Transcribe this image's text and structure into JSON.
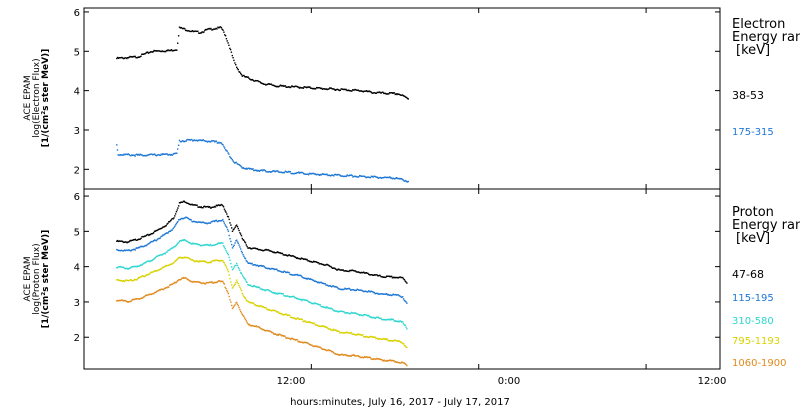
{
  "chart_data": [
    {
      "type": "scatter",
      "panel": "electron",
      "ylabel": [
        "ACE EPAM",
        "log(Electron Flux)",
        "[1/(cm²s ster MeV)]"
      ],
      "ylim": [
        1.5,
        6.1
      ],
      "yticks": [
        2,
        3,
        4,
        5,
        6
      ],
      "legend_title": [
        "Electron",
        "Energy ran",
        "[keV]"
      ],
      "series": [
        {
          "name": "38-53",
          "color": "#000000",
          "points": [
            [
              0,
              4.82
            ],
            [
              1.5,
              4.86
            ],
            [
              2.5,
              5.0
            ],
            [
              3.8,
              5.02
            ],
            [
              4.3,
              5.05
            ],
            [
              4.5,
              5.6
            ],
            [
              5.0,
              5.55
            ],
            [
              5.5,
              5.5
            ],
            [
              6.0,
              5.48
            ],
            [
              6.5,
              5.55
            ],
            [
              7.0,
              5.58
            ],
            [
              7.5,
              5.6
            ],
            [
              7.8,
              5.4
            ],
            [
              8.1,
              5.1
            ],
            [
              8.4,
              4.75
            ],
            [
              8.6,
              4.6
            ],
            [
              9.0,
              4.38
            ],
            [
              9.6,
              4.3
            ],
            [
              10.5,
              4.18
            ],
            [
              11.5,
              4.12
            ],
            [
              12.5,
              4.1
            ],
            [
              13.5,
              4.08
            ],
            [
              14.5,
              4.06
            ],
            [
              15.5,
              4.04
            ],
            [
              16.5,
              4.02
            ],
            [
              17.5,
              4.0
            ],
            [
              18.5,
              3.95
            ],
            [
              19.5,
              3.93
            ],
            [
              20.2,
              3.92
            ],
            [
              20.9,
              3.8
            ]
          ]
        },
        {
          "name": "175-315",
          "color": "#1f77d4",
          "points": [
            [
              0,
              2.62
            ],
            [
              0.1,
              2.38
            ],
            [
              1.5,
              2.36
            ],
            [
              3.8,
              2.38
            ],
            [
              4.3,
              2.4
            ],
            [
              4.5,
              2.72
            ],
            [
              5.5,
              2.75
            ],
            [
              6.5,
              2.72
            ],
            [
              7.5,
              2.68
            ],
            [
              7.8,
              2.5
            ],
            [
              8.1,
              2.35
            ],
            [
              8.4,
              2.2
            ],
            [
              9.0,
              2.05
            ],
            [
              10.0,
              1.98
            ],
            [
              11.0,
              1.95
            ],
            [
              12.5,
              1.92
            ],
            [
              14.0,
              1.88
            ],
            [
              15.5,
              1.86
            ],
            [
              17.0,
              1.83
            ],
            [
              18.5,
              1.8
            ],
            [
              20.0,
              1.78
            ],
            [
              20.9,
              1.7
            ]
          ]
        }
      ]
    },
    {
      "type": "scatter",
      "panel": "proton",
      "ylabel": [
        "ACE EPAM",
        "log(Proton Flux)",
        "[1/(cm²s ster MeV)]"
      ],
      "ylim": [
        1.1,
        6.2
      ],
      "yticks": [
        2,
        3,
        4,
        5,
        6
      ],
      "legend_title": [
        "Proton",
        "Energy ran",
        "[keV]"
      ],
      "series": [
        {
          "name": "47-68",
          "color": "#000000",
          "points": [
            [
              0,
              4.72
            ],
            [
              0.8,
              4.7
            ],
            [
              1.5,
              4.78
            ],
            [
              2.3,
              4.9
            ],
            [
              3.0,
              5.05
            ],
            [
              3.6,
              5.2
            ],
            [
              4.1,
              5.4
            ],
            [
              4.5,
              5.8
            ],
            [
              4.9,
              5.85
            ],
            [
              5.4,
              5.75
            ],
            [
              6.0,
              5.7
            ],
            [
              6.6,
              5.68
            ],
            [
              7.2,
              5.72
            ],
            [
              7.6,
              5.75
            ],
            [
              8.0,
              5.4
            ],
            [
              8.3,
              5.0
            ],
            [
              8.6,
              5.2
            ],
            [
              9.0,
              4.8
            ],
            [
              9.4,
              4.55
            ],
            [
              10.0,
              4.5
            ],
            [
              11.0,
              4.45
            ],
            [
              12.0,
              4.35
            ],
            [
              13.0,
              4.25
            ],
            [
              14.0,
              4.15
            ],
            [
              15.0,
              4.05
            ],
            [
              16.0,
              3.9
            ],
            [
              17.0,
              3.88
            ],
            [
              18.0,
              3.8
            ],
            [
              19.0,
              3.72
            ],
            [
              20.0,
              3.7
            ],
            [
              20.5,
              3.68
            ],
            [
              20.8,
              3.55
            ]
          ]
        },
        {
          "name": "115-195",
          "color": "#1f77d4",
          "points": [
            [
              0,
              4.48
            ],
            [
              0.8,
              4.45
            ],
            [
              1.5,
              4.52
            ],
            [
              2.3,
              4.65
            ],
            [
              3.0,
              4.8
            ],
            [
              3.6,
              4.95
            ],
            [
              4.1,
              5.1
            ],
            [
              4.5,
              5.35
            ],
            [
              4.9,
              5.4
            ],
            [
              5.4,
              5.3
            ],
            [
              6.0,
              5.25
            ],
            [
              6.6,
              5.24
            ],
            [
              7.2,
              5.3
            ],
            [
              7.6,
              5.32
            ],
            [
              8.0,
              5.0
            ],
            [
              8.3,
              4.55
            ],
            [
              8.6,
              4.75
            ],
            [
              9.0,
              4.4
            ],
            [
              9.4,
              4.1
            ],
            [
              10.0,
              4.05
            ],
            [
              11.0,
              3.95
            ],
            [
              12.0,
              3.85
            ],
            [
              13.0,
              3.75
            ],
            [
              14.0,
              3.62
            ],
            [
              15.0,
              3.5
            ],
            [
              16.0,
              3.38
            ],
            [
              17.0,
              3.35
            ],
            [
              18.0,
              3.3
            ],
            [
              19.0,
              3.22
            ],
            [
              20.0,
              3.2
            ],
            [
              20.5,
              3.15
            ],
            [
              20.8,
              2.95
            ]
          ]
        },
        {
          "name": "310-580",
          "color": "#2fd6d0",
          "points": [
            [
              0,
              4.0
            ],
            [
              0.8,
              3.95
            ],
            [
              1.5,
              4.02
            ],
            [
              2.3,
              4.15
            ],
            [
              3.0,
              4.3
            ],
            [
              3.6,
              4.42
            ],
            [
              4.1,
              4.55
            ],
            [
              4.5,
              4.72
            ],
            [
              4.9,
              4.75
            ],
            [
              5.4,
              4.65
            ],
            [
              6.0,
              4.62
            ],
            [
              6.6,
              4.6
            ],
            [
              7.2,
              4.65
            ],
            [
              7.6,
              4.66
            ],
            [
              8.0,
              4.35
            ],
            [
              8.3,
              3.9
            ],
            [
              8.6,
              4.1
            ],
            [
              9.0,
              3.75
            ],
            [
              9.4,
              3.5
            ],
            [
              10.0,
              3.42
            ],
            [
              11.0,
              3.3
            ],
            [
              12.0,
              3.2
            ],
            [
              13.0,
              3.1
            ],
            [
              14.0,
              2.98
            ],
            [
              15.0,
              2.85
            ],
            [
              16.0,
              2.72
            ],
            [
              17.0,
              2.68
            ],
            [
              18.0,
              2.6
            ],
            [
              19.0,
              2.52
            ],
            [
              20.0,
              2.48
            ],
            [
              20.5,
              2.42
            ],
            [
              20.8,
              2.25
            ]
          ]
        },
        {
          "name": "795-1193",
          "color": "#d8d200",
          "points": [
            [
              0,
              3.62
            ],
            [
              0.8,
              3.6
            ],
            [
              1.5,
              3.66
            ],
            [
              2.3,
              3.8
            ],
            [
              3.0,
              3.92
            ],
            [
              3.6,
              4.02
            ],
            [
              4.1,
              4.12
            ],
            [
              4.5,
              4.25
            ],
            [
              4.9,
              4.28
            ],
            [
              5.4,
              4.18
            ],
            [
              6.0,
              4.15
            ],
            [
              6.6,
              4.13
            ],
            [
              7.2,
              4.18
            ],
            [
              7.6,
              4.18
            ],
            [
              8.0,
              3.85
            ],
            [
              8.3,
              3.4
            ],
            [
              8.6,
              3.6
            ],
            [
              9.0,
              3.25
            ],
            [
              9.4,
              3.0
            ],
            [
              10.0,
              2.92
            ],
            [
              11.0,
              2.78
            ],
            [
              12.0,
              2.65
            ],
            [
              13.0,
              2.52
            ],
            [
              14.0,
              2.4
            ],
            [
              15.0,
              2.28
            ],
            [
              16.0,
              2.15
            ],
            [
              17.0,
              2.1
            ],
            [
              18.0,
              2.02
            ],
            [
              19.0,
              1.95
            ],
            [
              20.0,
              1.9
            ],
            [
              20.5,
              1.85
            ],
            [
              20.8,
              1.7
            ]
          ]
        },
        {
          "name": "1060-1900",
          "color": "#e08a1e",
          "points": [
            [
              0,
              3.05
            ],
            [
              0.8,
              3.02
            ],
            [
              1.5,
              3.08
            ],
            [
              2.3,
              3.2
            ],
            [
              3.0,
              3.32
            ],
            [
              3.6,
              3.42
            ],
            [
              4.1,
              3.52
            ],
            [
              4.5,
              3.65
            ],
            [
              4.9,
              3.68
            ],
            [
              5.4,
              3.58
            ],
            [
              6.0,
              3.55
            ],
            [
              6.6,
              3.53
            ],
            [
              7.2,
              3.58
            ],
            [
              7.6,
              3.58
            ],
            [
              8.0,
              3.25
            ],
            [
              8.3,
              2.8
            ],
            [
              8.6,
              3.0
            ],
            [
              9.0,
              2.65
            ],
            [
              9.4,
              2.38
            ],
            [
              10.0,
              2.3
            ],
            [
              11.0,
              2.15
            ],
            [
              12.0,
              2.02
            ],
            [
              13.0,
              1.9
            ],
            [
              14.0,
              1.78
            ],
            [
              15.0,
              1.65
            ],
            [
              16.0,
              1.5
            ],
            [
              17.0,
              1.48
            ],
            [
              18.0,
              1.42
            ],
            [
              19.0,
              1.36
            ],
            [
              20.0,
              1.32
            ],
            [
              20.5,
              1.28
            ],
            [
              20.8,
              1.2
            ]
          ]
        }
      ]
    }
  ],
  "x_axis": {
    "xlabel": "hours:minutes, July 16, 2017 - July 17, 2017",
    "tick_labels": [
      "12:00",
      "0:00",
      "12:00"
    ]
  }
}
